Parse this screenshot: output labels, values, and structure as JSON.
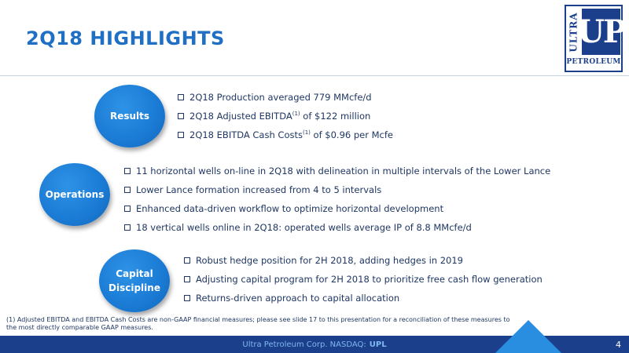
{
  "title": "2Q18 HIGHLIGHTS",
  "logo": {
    "ultra": "ULTRA",
    "up": "UP",
    "petroleum": "PETROLEUM"
  },
  "sections": {
    "results": {
      "label": "Results",
      "bullets": [
        {
          "text": "2Q18 Production averaged 779 MMcfe/d"
        },
        {
          "pre": "2Q18 Adjusted EBITDA",
          "sup": "(1)",
          "post": " of $122 million"
        },
        {
          "pre": "2Q18 EBITDA Cash Costs",
          "sup": "(1)",
          "post": " of $0.96 per Mcfe"
        }
      ]
    },
    "operations": {
      "label": "Operations",
      "bullets": [
        {
          "text": "11 horizontal wells on-line in 2Q18 with delineation in multiple intervals of  the Lower Lance"
        },
        {
          "text": "Lower Lance formation increased from 4 to 5 intervals"
        },
        {
          "text": "Enhanced data-driven workflow to optimize horizontal development"
        },
        {
          "text": "18 vertical wells online in 2Q18:  operated wells average IP of 8.8 MMcfe/d"
        }
      ]
    },
    "capital": {
      "label": "Capital\nDiscipline",
      "bullets": [
        {
          "text": "Robust hedge position for 2H 2018, adding hedges in 2019"
        },
        {
          "text": "Adjusting capital program for 2H 2018 to prioritize free cash flow generation"
        },
        {
          "text": "Returns-driven approach to capital allocation"
        }
      ]
    }
  },
  "footnote": "(1) Adjusted EBITDA and EBITDA Cash Costs are non-GAAP financial measures; please see slide 17 to this presentation for a reconciliation of these measures to the most directly comparable GAAP measures.",
  "footer": {
    "company": "Ultra Petroleum Corp. NASDAQ:",
    "ticker": "UPL",
    "page": "4"
  },
  "colors": {
    "title": "#1f6fc5",
    "circle": "#1a7ad4",
    "footer_bar": "#1c3f8c",
    "footer_accent": "#2a8ee0"
  }
}
